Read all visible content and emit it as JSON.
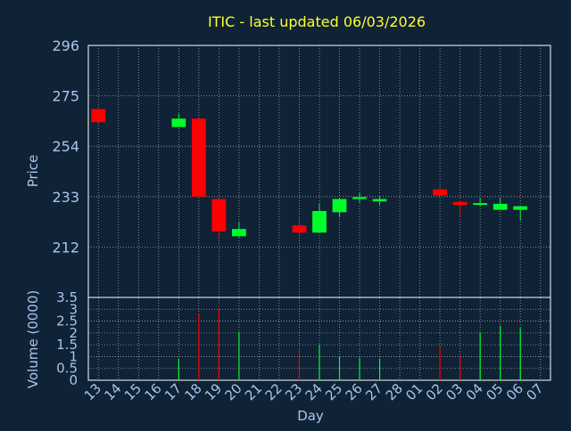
{
  "chart_data": [
    {
      "type": "candlestick",
      "title": "ITIC - last updated 06/03/2026",
      "ylabel": "Price",
      "ylim": [
        191,
        296
      ],
      "y_ticks": [
        212,
        233,
        254,
        275,
        296
      ],
      "grid": true,
      "colors": {
        "up": "#00ff2a",
        "down": "#ff0000",
        "title": "#ffff33",
        "text": "#a9c6e8",
        "grid": "#ffffff",
        "background": "#0f2236"
      },
      "candles": [
        {
          "day": "13",
          "open": 269.5,
          "close": 264.0,
          "high": 269.5,
          "low": 264.0
        },
        {
          "day": "17",
          "open": 262.0,
          "close": 265.5,
          "high": 267.5,
          "low": 262.0
        },
        {
          "day": "18",
          "open": 265.5,
          "close": 233.0,
          "high": 265.5,
          "low": 233.0
        },
        {
          "day": "19",
          "open": 232.0,
          "close": 218.5,
          "high": 232.0,
          "low": 216.0
        },
        {
          "day": "20",
          "open": 216.5,
          "close": 219.5,
          "high": 222.5,
          "low": 216.0
        },
        {
          "day": "23",
          "open": 221.0,
          "close": 218.0,
          "high": 224.5,
          "low": 217.0
        },
        {
          "day": "24",
          "open": 218.0,
          "close": 227.0,
          "high": 230.0,
          "low": 218.0
        },
        {
          "day": "25",
          "open": 226.5,
          "close": 232.0,
          "high": 232.5,
          "low": 224.5
        },
        {
          "day": "26",
          "open": 232.0,
          "close": 232.8,
          "high": 234.5,
          "low": 230.5
        },
        {
          "day": "27",
          "open": 231.0,
          "close": 232.0,
          "high": 233.0,
          "low": 229.5
        },
        {
          "day": "02",
          "open": 236.0,
          "close": 233.5,
          "high": 236.5,
          "low": 233.5
        },
        {
          "day": "03",
          "open": 230.8,
          "close": 229.5,
          "high": 231.5,
          "low": 224.5
        },
        {
          "day": "04",
          "open": 229.8,
          "close": 230.3,
          "high": 232.5,
          "low": 228.8
        },
        {
          "day": "05",
          "open": 227.5,
          "close": 230.0,
          "high": 232.5,
          "low": 227.5
        },
        {
          "day": "06",
          "open": 227.5,
          "close": 229.0,
          "high": 229.0,
          "low": 223.0
        }
      ]
    },
    {
      "type": "bar",
      "ylabel": "Volume (0000)",
      "xlabel": "Day",
      "ylim": [
        0,
        3.5
      ],
      "y_ticks": [
        0,
        0.5,
        1,
        1.5,
        2,
        2.5,
        3,
        3.5
      ],
      "y_tick_labels": [
        "0",
        "0.5",
        "1",
        "1.5",
        "2",
        "2.5",
        "3",
        "3.5"
      ],
      "grid": true,
      "categories": [
        "13",
        "14",
        "15",
        "16",
        "17",
        "18",
        "19",
        "20",
        "21",
        "22",
        "23",
        "24",
        "25",
        "26",
        "27",
        "28",
        "01",
        "02",
        "03",
        "04",
        "05",
        "06",
        "07"
      ],
      "bars": [
        {
          "day": "17",
          "value": 0.92,
          "color": "up"
        },
        {
          "day": "18",
          "value": 2.8,
          "color": "down"
        },
        {
          "day": "19",
          "value": 3.05,
          "color": "down"
        },
        {
          "day": "20",
          "value": 2.05,
          "color": "up"
        },
        {
          "day": "23",
          "value": 1.3,
          "color": "down"
        },
        {
          "day": "24",
          "value": 1.5,
          "color": "up"
        },
        {
          "day": "25",
          "value": 0.98,
          "color": "up"
        },
        {
          "day": "26",
          "value": 0.95,
          "color": "up"
        },
        {
          "day": "27",
          "value": 0.92,
          "color": "up"
        },
        {
          "day": "02",
          "value": 1.42,
          "color": "down"
        },
        {
          "day": "03",
          "value": 1.05,
          "color": "down"
        },
        {
          "day": "04",
          "value": 2.0,
          "color": "up"
        },
        {
          "day": "05",
          "value": 2.3,
          "color": "up"
        },
        {
          "day": "06",
          "value": 2.2,
          "color": "up"
        }
      ]
    }
  ]
}
